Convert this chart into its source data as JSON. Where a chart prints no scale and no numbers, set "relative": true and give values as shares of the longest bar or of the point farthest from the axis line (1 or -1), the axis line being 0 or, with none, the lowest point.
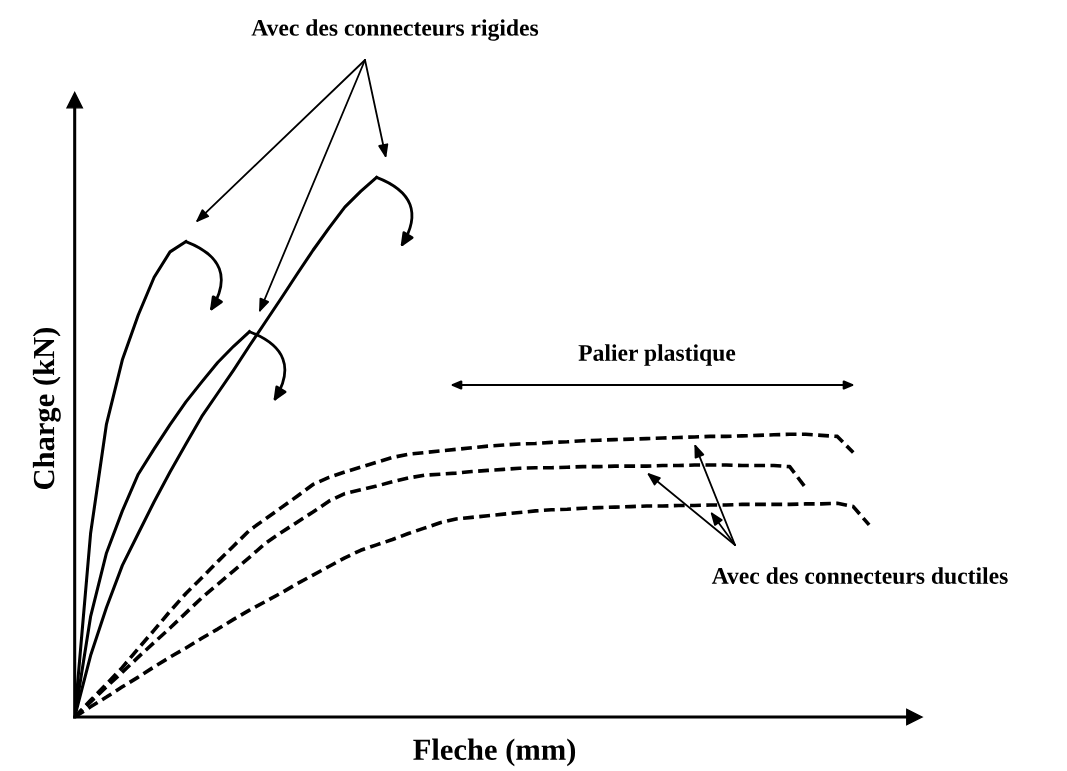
{
  "chart_data": {
    "type": "line",
    "relative": true,
    "xlabel": "Fleche (mm)",
    "ylabel": "Charge (kN)",
    "annotations": [
      "Avec des connecteurs rigides",
      "Palier plastique",
      "Avec des connecteurs ductiles"
    ],
    "categories": [
      null,
      null,
      null,
      null,
      null,
      null,
      null,
      null,
      null,
      null,
      null,
      null,
      null,
      null,
      null,
      null,
      null,
      null,
      null,
      null,
      null,
      null,
      null,
      null,
      null,
      null,
      null,
      null,
      null,
      null,
      null,
      null,
      null,
      null,
      null,
      null,
      null,
      null,
      null,
      null,
      null,
      null,
      null,
      null,
      null,
      null,
      null,
      null,
      null,
      null,
      null
    ],
    "series": [
      {
        "color": "#000000",
        "line_style": "solid",
        "values": [
          0,
          0.34,
          0.543,
          0.662,
          0.745,
          0.815,
          0.862,
          0.881,
          null,
          null,
          null,
          null,
          null,
          null,
          null,
          null,
          null,
          null,
          null,
          null,
          null,
          null,
          null,
          null,
          null,
          null,
          null,
          null,
          null,
          null,
          null,
          null,
          null,
          null,
          null,
          null,
          null,
          null,
          null,
          null,
          null,
          null,
          null,
          null,
          null,
          null,
          null,
          null,
          null,
          null,
          null
        ]
      },
      {
        "color": "#000000",
        "line_style": "solid",
        "values": [
          0,
          0.186,
          0.304,
          0.382,
          0.45,
          0.497,
          0.542,
          0.584,
          0.621,
          0.657,
          0.687,
          0.714,
          null,
          null,
          null,
          null,
          null,
          null,
          null,
          null,
          null,
          null,
          null,
          null,
          null,
          null,
          null,
          null,
          null,
          null,
          null,
          null,
          null,
          null,
          null,
          null,
          null,
          null,
          null,
          null,
          null,
          null,
          null,
          null,
          null,
          null,
          null,
          null,
          null,
          null,
          null
        ]
      },
      {
        "color": "#000000",
        "line_style": "solid",
        "values": [
          0,
          0.114,
          0.203,
          0.281,
          0.34,
          0.399,
          0.454,
          0.506,
          0.557,
          0.6,
          0.643,
          0.688,
          0.732,
          0.776,
          0.821,
          0.865,
          0.906,
          0.945,
          0.974,
          1.0,
          null,
          null,
          null,
          null,
          null,
          null,
          null,
          null,
          null,
          null,
          null,
          null,
          null,
          null,
          null,
          null,
          null,
          null,
          null,
          null,
          null,
          null,
          null,
          null,
          null,
          null,
          null,
          null,
          null,
          null,
          null
        ]
      },
      {
        "color": "#000000",
        "line_style": "dashed",
        "values": [
          0,
          0.031,
          0.061,
          0.092,
          0.127,
          0.161,
          0.196,
          0.229,
          0.258,
          0.288,
          0.317,
          0.346,
          0.367,
          0.388,
          0.409,
          0.431,
          0.444,
          0.454,
          0.463,
          0.472,
          0.481,
          0.487,
          0.49,
          0.493,
          0.496,
          0.499,
          0.502,
          0.504,
          0.506,
          0.507,
          0.509,
          0.51,
          0.512,
          0.513,
          0.514,
          0.515,
          0.516,
          0.517,
          0.518,
          0.519,
          0.52,
          0.52,
          0.521,
          0.522,
          0.523,
          0.524,
          0.524,
          0.522,
          0.52,
          0.49,
          null
        ]
      },
      {
        "color": "#000000",
        "line_style": "dashed",
        "values": [
          0,
          0.028,
          0.056,
          0.083,
          0.111,
          0.138,
          0.165,
          0.193,
          0.221,
          0.246,
          0.271,
          0.296,
          0.322,
          0.342,
          0.361,
          0.38,
          0.4,
          0.414,
          0.421,
          0.428,
          0.436,
          0.443,
          0.448,
          0.45,
          0.452,
          0.455,
          0.457,
          0.459,
          0.461,
          0.462,
          0.462,
          0.463,
          0.464,
          0.464,
          0.465,
          0.465,
          0.465,
          0.466,
          0.466,
          0.467,
          0.467,
          0.467,
          0.466,
          0.466,
          0.466,
          0.464,
          0.425,
          null,
          null,
          null,
          null
        ]
      },
      {
        "color": "#000000",
        "line_style": "dashed",
        "values": [
          0,
          0.019,
          0.037,
          0.056,
          0.074,
          0.093,
          0.111,
          0.128,
          0.146,
          0.163,
          0.181,
          0.198,
          0.214,
          0.23,
          0.247,
          0.263,
          0.279,
          0.295,
          0.309,
          0.319,
          0.329,
          0.34,
          0.35,
          0.36,
          0.367,
          0.37,
          0.373,
          0.376,
          0.379,
          0.382,
          0.384,
          0.385,
          0.387,
          0.388,
          0.389,
          0.39,
          0.391,
          0.391,
          0.392,
          0.392,
          0.393,
          0.393,
          0.394,
          0.394,
          0.394,
          0.394,
          0.395,
          0.395,
          0.396,
          0.39,
          0.356
        ]
      }
    ]
  }
}
